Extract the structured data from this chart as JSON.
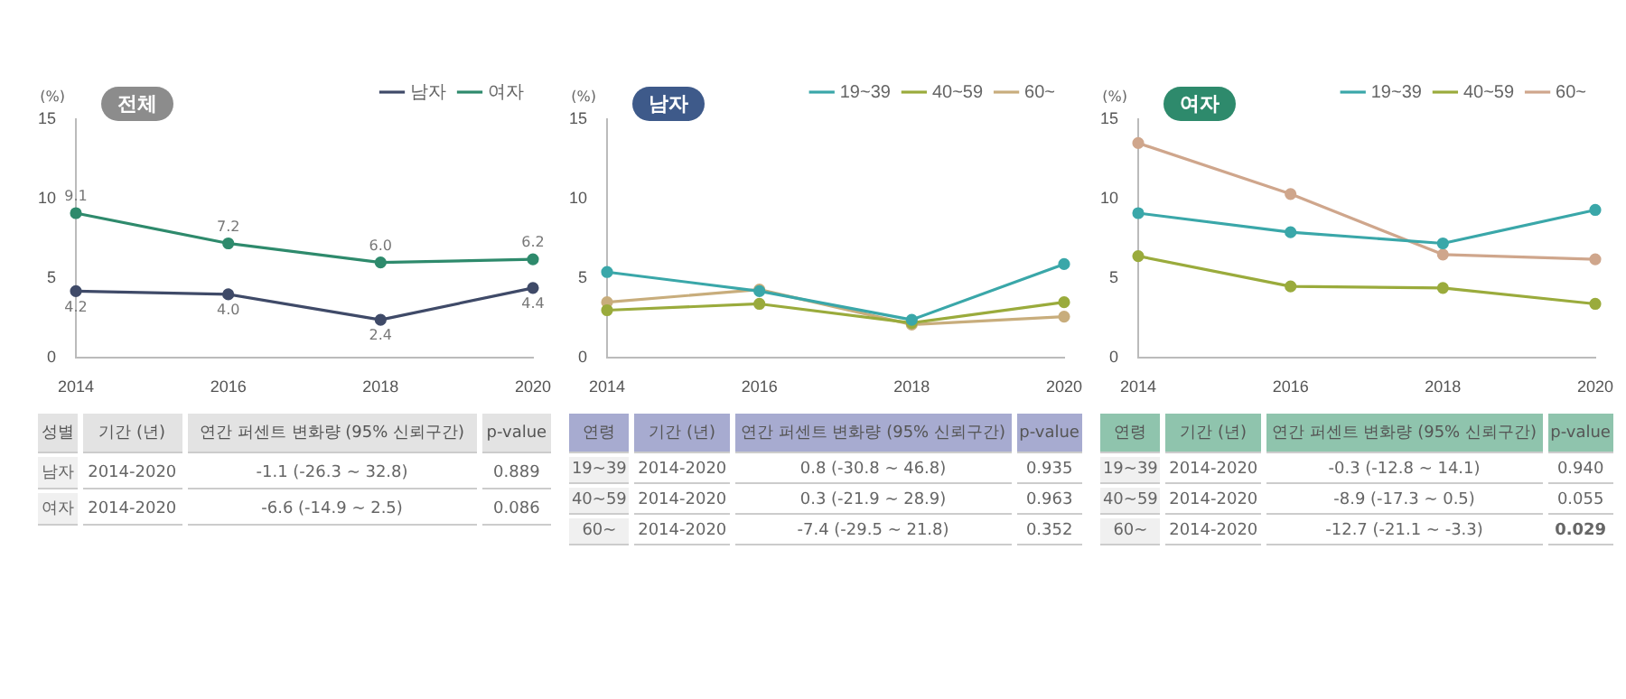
{
  "chart_data": [
    {
      "type": "line",
      "title": "전체",
      "ylabel": "(%)",
      "categories": [
        "2014",
        "2016",
        "2018",
        "2020"
      ],
      "ylim": [
        0,
        15
      ],
      "yticks": [
        0,
        5,
        10,
        15
      ],
      "grid": false,
      "legend": "top right",
      "marker": "circle",
      "series": [
        {
          "name": "남자",
          "color": "#3f4a68",
          "values": [
            4.2,
            4.0,
            2.4,
            4.4
          ],
          "value_labels": [
            "4.2",
            "4.0",
            "2.4",
            "4.4"
          ]
        },
        {
          "name": "여자",
          "color": "#2e8a6c",
          "values": [
            9.1,
            7.2,
            6.0,
            6.2
          ],
          "value_labels": [
            "9.1",
            "7.2",
            "6.0",
            "6.2"
          ]
        }
      ],
      "annotations": [
        "성별",
        "기간 (년)",
        "연간 퍼센트 변화량 (95% 신뢰구간)",
        "p-value",
        "남자",
        "2014-2020",
        "-1.1 (-26.3 ~ 32.8)",
        "0.889",
        "여자",
        "2014-2020",
        "-6.6 (-14.9 ~ 2.5)",
        "0.086"
      ]
    },
    {
      "type": "line",
      "title": "남자",
      "ylabel": "(%)",
      "categories": [
        "2014",
        "2016",
        "2018",
        "2020"
      ],
      "ylim": [
        0,
        15
      ],
      "yticks": [
        0,
        5,
        10,
        15
      ],
      "grid": false,
      "legend": "top right",
      "marker": "circle",
      "series": [
        {
          "name": "19~39",
          "color": "#3aa7a9",
          "values": [
            5.4,
            4.2,
            2.4,
            5.9
          ]
        },
        {
          "name": "40~59",
          "color": "#9aab3c",
          "values": [
            3.0,
            3.4,
            2.2,
            3.5
          ]
        },
        {
          "name": "60~",
          "color": "#c8ad7c",
          "values": [
            3.5,
            4.3,
            2.1,
            2.6
          ]
        }
      ],
      "annotations": [
        "연령",
        "기간 (년)",
        "연간 퍼센트 변화량 (95% 신뢰구간)",
        "p-value",
        "19~39",
        "2014-2020",
        "0.8 (-30.8 ~ 46.8)",
        "0.935",
        "40~59",
        "2014-2020",
        "0.3 (-21.9 ~ 28.9)",
        "0.963",
        "60~",
        "2014-2020",
        "-7.4 (-29.5 ~ 21.8)",
        "0.352"
      ]
    },
    {
      "type": "line",
      "title": "여자",
      "ylabel": "(%)",
      "categories": [
        "2014",
        "2016",
        "2018",
        "2020"
      ],
      "ylim": [
        0,
        15
      ],
      "yticks": [
        0,
        5,
        10,
        15
      ],
      "grid": false,
      "legend": "top right",
      "marker": "circle",
      "series": [
        {
          "name": "19~39",
          "color": "#3aa7a9",
          "values": [
            9.1,
            7.9,
            7.2,
            9.3
          ]
        },
        {
          "name": "40~59",
          "color": "#9aab3c",
          "values": [
            6.4,
            4.5,
            4.4,
            3.4
          ]
        },
        {
          "name": "60~",
          "color": "#cfa68c",
          "values": [
            13.5,
            10.3,
            6.5,
            6.2
          ]
        }
      ],
      "annotations": [
        "연령",
        "기간 (년)",
        "연간 퍼센트 변화량 (95% 신뢰구간)",
        "p-value",
        "19~39",
        "2014-2020",
        "-0.3 (-12.8 ~ 14.1)",
        "0.940",
        "40~59",
        "2014-2020",
        "-8.9 (-17.3 ~ 0.5)",
        "0.055",
        "60~",
        "2014-2020",
        "-12.7 (-21.1 ~ -3.3)",
        "0.029"
      ]
    }
  ]
}
